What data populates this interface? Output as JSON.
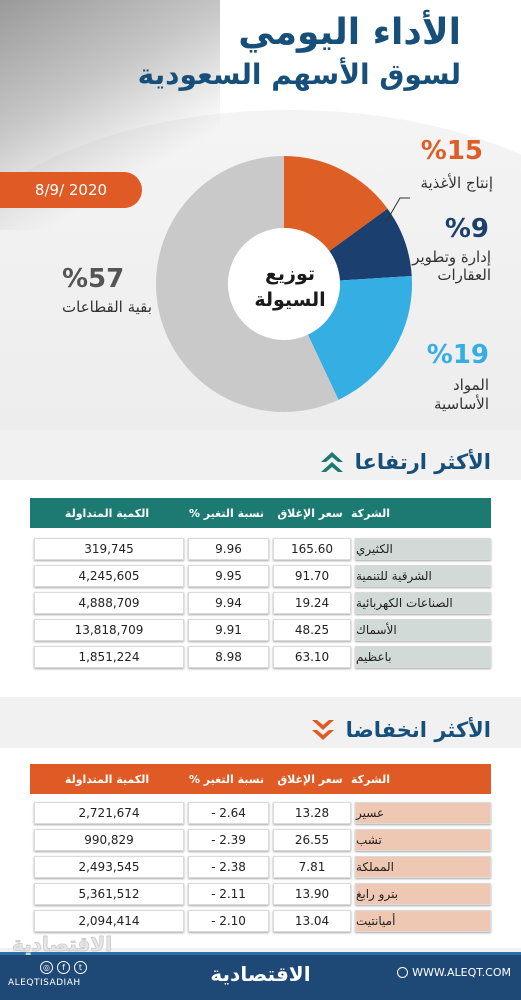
{
  "header": {
    "title_line1": "الأداء اليومي",
    "title_line2": "لسوق الأسهم السعودية",
    "date": "8/9/ 2020"
  },
  "chart_data": {
    "type": "pie",
    "title": "توزيع السيولة",
    "center_label_line1": "توزيع",
    "center_label_line2": "السيولة",
    "slices": [
      {
        "name": "إنتاج الأغذية",
        "value": 15,
        "label": "%15",
        "color": "#de5f26"
      },
      {
        "name": "إدارة وتطوير العقارات",
        "value": 9,
        "label": "%9",
        "color": "#1b3f6e"
      },
      {
        "name": "المواد الأساسية",
        "value": 19,
        "label": "%19",
        "color": "#35aee4"
      },
      {
        "name": "بقية القطاعات",
        "value": 57,
        "label": "%57",
        "color": "#c9c9c9"
      }
    ]
  },
  "labels": {
    "food_pct": "%15",
    "food_l1": "إنتاج الأغذية",
    "realestate_pct": "%9",
    "realestate_l1": "إدارة وتطوير",
    "realestate_l2": "العقارات",
    "materials_pct": "%19",
    "materials_l1": "المواد",
    "materials_l2": "الأساسية",
    "rest_pct": "%57",
    "rest_l1": "بقية القطاعات"
  },
  "colors": {
    "navy": "#174f7b",
    "teal": "#1c7a72",
    "orange": "#e05a26",
    "gray": "#c9c9c9"
  },
  "gainers": {
    "title": "الأكثر ارتفاعا",
    "headers": {
      "company": "الشركة",
      "close": "سعر الإغلاق",
      "change": "نسبة التغير %",
      "volume": "الكمية المتداولة"
    },
    "rows": [
      {
        "company": "الكثيري",
        "close": "165.60",
        "change": "9.96",
        "volume": "319,745"
      },
      {
        "company": "الشرقية للتنمية",
        "close": "91.70",
        "change": "9.95",
        "volume": "4,245,605"
      },
      {
        "company": "الصناعات الكهربائية",
        "close": "19.24",
        "change": "9.94",
        "volume": "4,888,709"
      },
      {
        "company": "الأسماك",
        "close": "48.25",
        "change": "9.91",
        "volume": "13,818,709"
      },
      {
        "company": "باعظيم",
        "close": "63.10",
        "change": "8.98",
        "volume": "1,851,224"
      }
    ]
  },
  "losers": {
    "title": "الأكثر انخفاضا",
    "headers": {
      "company": "الشركة",
      "close": "سعر الإغلاق",
      "change": "نسبة التغير %",
      "volume": "الكمية المتداولة"
    },
    "rows": [
      {
        "company": "عسير",
        "close": "13.28",
        "change": "- 2.64",
        "volume": "2,721,674"
      },
      {
        "company": "تشب",
        "close": "26.55",
        "change": "- 2.39",
        "volume": "990,829"
      },
      {
        "company": "المملكة",
        "close": "7.81",
        "change": "- 2.38",
        "volume": "2,493,545"
      },
      {
        "company": "بترو رابغ",
        "close": "13.90",
        "change": "- 2.11",
        "volume": "5,361,512"
      },
      {
        "company": "أميانتيت",
        "close": "13.04",
        "change": "- 2.10",
        "volume": "2,094,414"
      }
    ]
  },
  "footer": {
    "brand": "الاقتصادية",
    "handle": "ALEQTISADIAH",
    "website": "WWW.ALEQT.COM"
  }
}
